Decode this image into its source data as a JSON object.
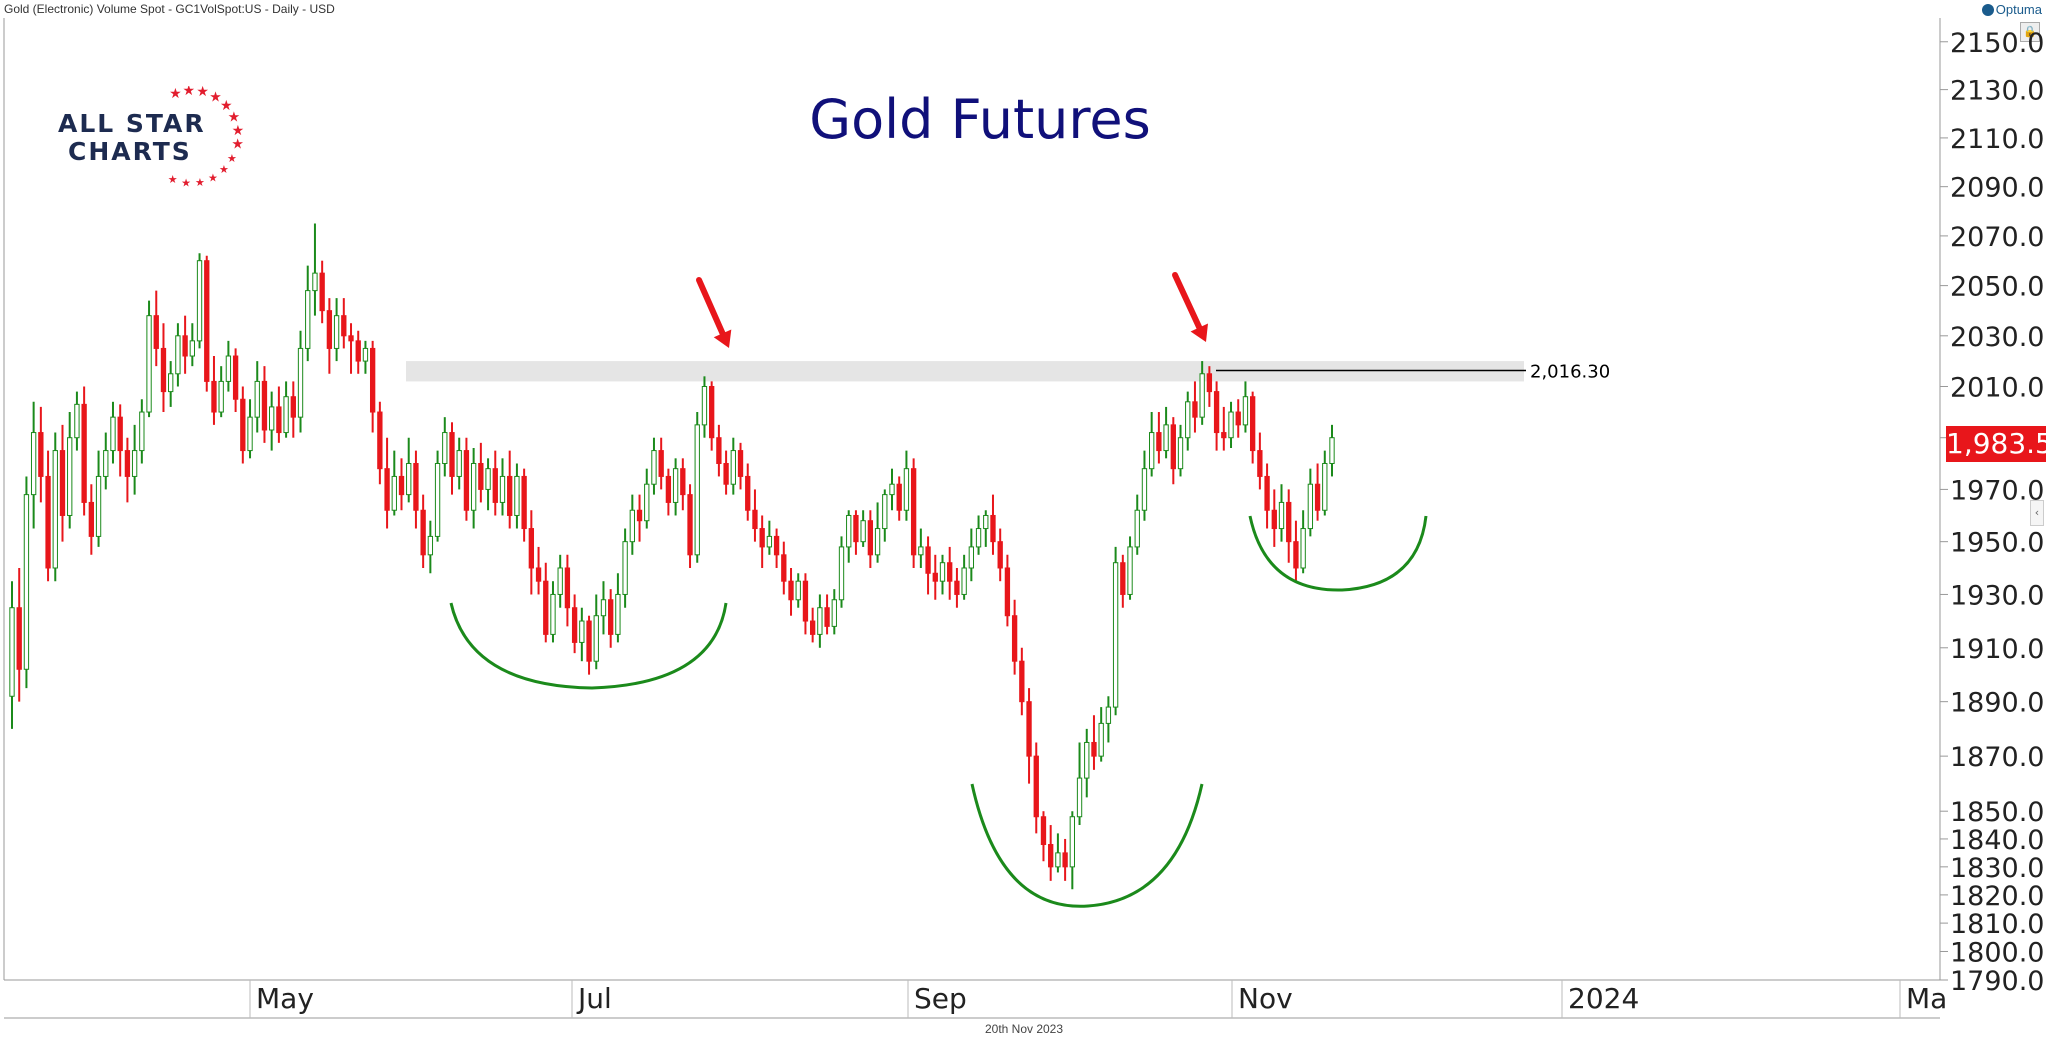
{
  "header": {
    "text": "Gold (Electronic) Volume Spot - GC1VolSpot:US - Daily - USD"
  },
  "brand": {
    "name": "Optuma",
    "icon": "optuma-icon"
  },
  "logo": {
    "line1": "ALL STAR",
    "line2": "CHARTS",
    "star_color": "#e21d2e",
    "text_color": "#1d2b50"
  },
  "footer": {
    "date": "20th Nov 2023"
  },
  "colors": {
    "up": "#1b8a1b",
    "down": "#e8161b",
    "title": "#10107a",
    "annotation_arc": "#1b8a1b",
    "arrow": "#e8161b",
    "resistance_band": "#e5e5e5"
  },
  "chart_data": {
    "type": "candlestick",
    "title": "Gold Futures",
    "y_scale": "log",
    "ylim": [
      1790,
      2160
    ],
    "y_ticks": [
      "2150.0",
      "2130.0",
      "2110.0",
      "2090.0",
      "2070.0",
      "2050.0",
      "2030.0",
      "2010.0",
      "1990.0",
      "1970.0",
      "1950.0",
      "1930.0",
      "1910.0",
      "1890.0",
      "1870.0",
      "1850.0",
      "1840.0",
      "1830.0",
      "1820.0",
      "1810.0",
      "1800.0",
      "1790.0"
    ],
    "x_labels": [
      "May",
      "Jul",
      "Sep",
      "Nov",
      "2024",
      "Ma"
    ],
    "last_price": "1,983.5",
    "resistance": {
      "value": 2016.3,
      "label": "2,016.30",
      "band": [
        2012,
        2020
      ]
    },
    "candles": [
      [
        1892,
        1925,
        1880,
        1935
      ],
      [
        1925,
        1902,
        1890,
        1940
      ],
      [
        1902,
        1968,
        1895,
        1975
      ],
      [
        1968,
        1992,
        1955,
        2004
      ],
      [
        1992,
        1975,
        1965,
        2002
      ],
      [
        1975,
        1940,
        1935,
        1985
      ],
      [
        1940,
        1985,
        1935,
        1992
      ],
      [
        1985,
        1960,
        1950,
        1995
      ],
      [
        1960,
        1990,
        1955,
        2000
      ],
      [
        1990,
        2003,
        1985,
        2008
      ],
      [
        2003,
        1965,
        1960,
        2010
      ],
      [
        1965,
        1952,
        1945,
        1972
      ],
      [
        1952,
        1975,
        1948,
        1985
      ],
      [
        1975,
        1985,
        1970,
        1992
      ],
      [
        1985,
        1998,
        1980,
        2004
      ],
      [
        1998,
        1985,
        1975,
        2003
      ],
      [
        1985,
        1975,
        1965,
        1990
      ],
      [
        1975,
        1985,
        1968,
        1995
      ],
      [
        1985,
        2000,
        1980,
        2005
      ],
      [
        2000,
        2038,
        1998,
        2044
      ],
      [
        2038,
        2025,
        2018,
        2048
      ],
      [
        2025,
        2008,
        2000,
        2035
      ],
      [
        2008,
        2015,
        2002,
        2020
      ],
      [
        2015,
        2030,
        2010,
        2035
      ],
      [
        2030,
        2022,
        2015,
        2038
      ],
      [
        2022,
        2028,
        2018,
        2035
      ],
      [
        2028,
        2060,
        2025,
        2063
      ],
      [
        2060,
        2012,
        2008,
        2062
      ],
      [
        2012,
        2000,
        1995,
        2022
      ],
      [
        2000,
        2012,
        1998,
        2018
      ],
      [
        2012,
        2022,
        2008,
        2028
      ],
      [
        2022,
        2005,
        2000,
        2025
      ],
      [
        2005,
        1985,
        1980,
        2010
      ],
      [
        1985,
        1998,
        1982,
        2005
      ],
      [
        1998,
        2012,
        1992,
        2020
      ],
      [
        2012,
        1993,
        1988,
        2018
      ],
      [
        1993,
        2002,
        1985,
        2008
      ],
      [
        2002,
        1992,
        1988,
        2010
      ],
      [
        1992,
        2006,
        1990,
        2012
      ],
      [
        2006,
        1998,
        1990,
        2012
      ],
      [
        1998,
        2025,
        1992,
        2032
      ],
      [
        2025,
        2048,
        2020,
        2058
      ],
      [
        2048,
        2055,
        2038,
        2075
      ],
      [
        2055,
        2040,
        2035,
        2060
      ],
      [
        2040,
        2025,
        2015,
        2045
      ],
      [
        2025,
        2038,
        2020,
        2045
      ],
      [
        2038,
        2030,
        2025,
        2045
      ],
      [
        2030,
        2028,
        2015,
        2035
      ],
      [
        2028,
        2020,
        2015,
        2032
      ],
      [
        2020,
        2025,
        2015,
        2028
      ],
      [
        2025,
        2000,
        1992,
        2028
      ],
      [
        2000,
        1978,
        1972,
        2004
      ],
      [
        1978,
        1962,
        1955,
        1990
      ],
      [
        1962,
        1975,
        1960,
        1985
      ],
      [
        1975,
        1968,
        1962,
        1982
      ],
      [
        1968,
        1980,
        1965,
        1990
      ],
      [
        1980,
        1962,
        1955,
        1985
      ],
      [
        1962,
        1945,
        1940,
        1968
      ],
      [
        1945,
        1952,
        1938,
        1958
      ],
      [
        1952,
        1980,
        1950,
        1985
      ],
      [
        1980,
        1992,
        1975,
        1998
      ],
      [
        1992,
        1975,
        1968,
        1996
      ],
      [
        1975,
        1985,
        1970,
        1990
      ],
      [
        1985,
        1962,
        1958,
        1990
      ],
      [
        1962,
        1980,
        1955,
        1986
      ],
      [
        1980,
        1970,
        1965,
        1988
      ],
      [
        1970,
        1978,
        1962,
        1982
      ],
      [
        1978,
        1965,
        1960,
        1985
      ],
      [
        1965,
        1975,
        1960,
        1982
      ],
      [
        1975,
        1960,
        1955,
        1985
      ],
      [
        1960,
        1975,
        1955,
        1980
      ],
      [
        1975,
        1955,
        1950,
        1978
      ],
      [
        1955,
        1940,
        1930,
        1962
      ],
      [
        1940,
        1935,
        1930,
        1948
      ],
      [
        1935,
        1915,
        1912,
        1942
      ],
      [
        1915,
        1930,
        1912,
        1935
      ],
      [
        1930,
        1940,
        1925,
        1945
      ],
      [
        1940,
        1925,
        1918,
        1945
      ],
      [
        1925,
        1912,
        1908,
        1930
      ],
      [
        1912,
        1920,
        1905,
        1925
      ],
      [
        1920,
        1905,
        1900,
        1922
      ],
      [
        1905,
        1922,
        1902,
        1930
      ],
      [
        1922,
        1928,
        1915,
        1935
      ],
      [
        1928,
        1915,
        1910,
        1932
      ],
      [
        1915,
        1930,
        1912,
        1938
      ],
      [
        1930,
        1950,
        1925,
        1955
      ],
      [
        1950,
        1962,
        1945,
        1968
      ],
      [
        1962,
        1958,
        1950,
        1968
      ],
      [
        1958,
        1972,
        1955,
        1978
      ],
      [
        1972,
        1985,
        1968,
        1990
      ],
      [
        1985,
        1975,
        1970,
        1990
      ],
      [
        1975,
        1965,
        1960,
        1978
      ],
      [
        1965,
        1978,
        1960,
        1982
      ],
      [
        1978,
        1968,
        1962,
        1982
      ],
      [
        1968,
        1945,
        1940,
        1972
      ],
      [
        1945,
        1995,
        1942,
        2000
      ],
      [
        1995,
        2010,
        1990,
        2014
      ],
      [
        2010,
        1990,
        1985,
        2012
      ],
      [
        1990,
        1980,
        1975,
        1995
      ],
      [
        1980,
        1972,
        1968,
        1985
      ],
      [
        1972,
        1985,
        1968,
        1990
      ],
      [
        1985,
        1975,
        1970,
        1988
      ],
      [
        1975,
        1962,
        1958,
        1980
      ],
      [
        1962,
        1955,
        1950,
        1970
      ],
      [
        1955,
        1948,
        1940,
        1960
      ],
      [
        1948,
        1952,
        1945,
        1958
      ],
      [
        1952,
        1945,
        1940,
        1955
      ],
      [
        1945,
        1935,
        1930,
        1950
      ],
      [
        1935,
        1928,
        1922,
        1940
      ],
      [
        1928,
        1935,
        1925,
        1938
      ],
      [
        1935,
        1920,
        1915,
        1938
      ],
      [
        1920,
        1915,
        1912,
        1925
      ],
      [
        1915,
        1925,
        1910,
        1930
      ],
      [
        1925,
        1918,
        1915,
        1930
      ],
      [
        1918,
        1928,
        1915,
        1932
      ],
      [
        1928,
        1948,
        1925,
        1952
      ],
      [
        1948,
        1960,
        1942,
        1962
      ],
      [
        1960,
        1950,
        1945,
        1962
      ],
      [
        1950,
        1958,
        1948,
        1962
      ],
      [
        1958,
        1945,
        1940,
        1962
      ],
      [
        1945,
        1955,
        1942,
        1965
      ],
      [
        1955,
        1968,
        1950,
        1970
      ],
      [
        1968,
        1972,
        1962,
        1978
      ],
      [
        1972,
        1962,
        1958,
        1975
      ],
      [
        1962,
        1978,
        1958,
        1985
      ],
      [
        1978,
        1945,
        1940,
        1982
      ],
      [
        1945,
        1948,
        1940,
        1955
      ],
      [
        1948,
        1938,
        1930,
        1952
      ],
      [
        1938,
        1935,
        1928,
        1945
      ],
      [
        1935,
        1942,
        1930,
        1945
      ],
      [
        1942,
        1935,
        1928,
        1948
      ],
      [
        1935,
        1930,
        1925,
        1940
      ],
      [
        1930,
        1940,
        1928,
        1945
      ],
      [
        1940,
        1948,
        1935,
        1955
      ],
      [
        1948,
        1955,
        1945,
        1960
      ],
      [
        1955,
        1960,
        1948,
        1962
      ],
      [
        1960,
        1950,
        1945,
        1968
      ],
      [
        1950,
        1940,
        1935,
        1955
      ],
      [
        1940,
        1922,
        1918,
        1945
      ],
      [
        1922,
        1905,
        1900,
        1928
      ],
      [
        1905,
        1890,
        1885,
        1910
      ],
      [
        1890,
        1870,
        1860,
        1895
      ],
      [
        1870,
        1848,
        1842,
        1875
      ],
      [
        1848,
        1838,
        1832,
        1850
      ],
      [
        1838,
        1830,
        1825,
        1845
      ],
      [
        1830,
        1835,
        1828,
        1842
      ],
      [
        1835,
        1830,
        1825,
        1840
      ],
      [
        1830,
        1848,
        1822,
        1850
      ],
      [
        1848,
        1862,
        1845,
        1875
      ],
      [
        1862,
        1875,
        1855,
        1880
      ],
      [
        1875,
        1870,
        1865,
        1885
      ],
      [
        1870,
        1882,
        1868,
        1888
      ],
      [
        1882,
        1888,
        1875,
        1892
      ],
      [
        1888,
        1942,
        1885,
        1948
      ],
      [
        1942,
        1930,
        1925,
        1945
      ],
      [
        1930,
        1948,
        1928,
        1952
      ],
      [
        1948,
        1962,
        1945,
        1968
      ],
      [
        1962,
        1978,
        1958,
        1985
      ],
      [
        1978,
        1992,
        1975,
        2000
      ],
      [
        1992,
        1985,
        1980,
        2000
      ],
      [
        1985,
        1995,
        1982,
        2002
      ],
      [
        1995,
        1978,
        1972,
        1998
      ],
      [
        1978,
        1990,
        1975,
        1995
      ],
      [
        1990,
        2004,
        1985,
        2008
      ],
      [
        2004,
        1998,
        1992,
        2012
      ],
      [
        1998,
        2015,
        1995,
        2020
      ],
      [
        2015,
        2008,
        2002,
        2018
      ],
      [
        2008,
        1992,
        1985,
        2012
      ],
      [
        1992,
        1990,
        1985,
        2002
      ],
      [
        1990,
        2000,
        1986,
        2004
      ],
      [
        2000,
        1995,
        1990,
        2005
      ],
      [
        1995,
        2006,
        1992,
        2012
      ],
      [
        2006,
        1985,
        1980,
        2008
      ],
      [
        1985,
        1975,
        1970,
        1992
      ],
      [
        1975,
        1962,
        1955,
        1980
      ],
      [
        1962,
        1955,
        1948,
        1970
      ],
      [
        1955,
        1965,
        1950,
        1972
      ],
      [
        1965,
        1950,
        1942,
        1970
      ],
      [
        1950,
        1940,
        1935,
        1958
      ],
      [
        1940,
        1955,
        1938,
        1962
      ],
      [
        1955,
        1972,
        1952,
        1978
      ],
      [
        1972,
        1962,
        1958,
        1980
      ],
      [
        1962,
        1980,
        1960,
        1985
      ],
      [
        1980,
        1990,
        1975,
        1995
      ]
    ]
  }
}
